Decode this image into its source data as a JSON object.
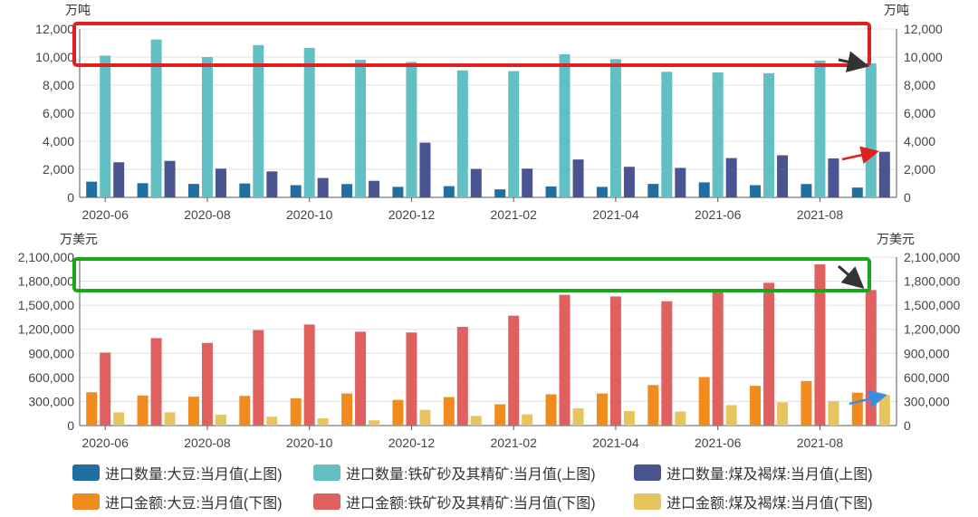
{
  "chart_data": [
    {
      "type": "bar",
      "unit_left": "万吨",
      "unit_right": "万吨",
      "x_tick_labels": [
        "2020-06",
        "2020-08",
        "2020-10",
        "2020-12",
        "2021-02",
        "2021-04",
        "2021-06",
        "2021-08"
      ],
      "categories": [
        "2020-06",
        "2020-07",
        "2020-08",
        "2020-09",
        "2020-10",
        "2020-11",
        "2020-12",
        "2021-01",
        "2021-02",
        "2021-03",
        "2021-04",
        "2021-05",
        "2021-06",
        "2021-07",
        "2021-08",
        "2021-09"
      ],
      "y_tick_labels": [
        "0",
        "2,000",
        "4,000",
        "6,000",
        "8,000",
        "10,000",
        "12,000"
      ],
      "ylim": [
        0,
        12000
      ],
      "grid": true,
      "series": [
        {
          "name": "进口数量:大豆:当月值(上图)",
          "color": "#1f6fa0",
          "values": [
            1120,
            1010,
            960,
            990,
            870,
            950,
            750,
            800,
            570,
            780,
            750,
            960,
            1070,
            870,
            950,
            700
          ]
        },
        {
          "name": "进口数量:铁矿砂及其精矿:当月值(上图)",
          "color": "#62c0c4",
          "values": [
            10100,
            11250,
            10000,
            10850,
            10650,
            9800,
            9650,
            9050,
            9000,
            10200,
            9850,
            8950,
            8900,
            8850,
            9750,
            9550
          ]
        },
        {
          "name": "进口数量:煤及褐煤:当月值(上图)",
          "color": "#4a5490",
          "values": [
            2500,
            2600,
            2050,
            1850,
            1380,
            1180,
            3900,
            2030,
            2050,
            2700,
            2180,
            2100,
            2800,
            3000,
            2780,
            3250
          ]
        }
      ]
    },
    {
      "type": "bar",
      "unit_left": "万美元",
      "unit_right": "万美元",
      "x_tick_labels": [
        "2020-06",
        "2020-08",
        "2020-10",
        "2020-12",
        "2021-02",
        "2021-04",
        "2021-06",
        "2021-08"
      ],
      "categories": [
        "2020-06",
        "2020-07",
        "2020-08",
        "2020-09",
        "2020-10",
        "2020-11",
        "2020-12",
        "2021-01",
        "2021-02",
        "2021-03",
        "2021-04",
        "2021-05",
        "2021-06",
        "2021-07",
        "2021-08",
        "2021-09"
      ],
      "y_tick_labels": [
        "0",
        "300,000",
        "600,000",
        "900,000",
        "1,200,000",
        "1,500,000",
        "1,800,000",
        "2,100,000"
      ],
      "ylim": [
        0,
        2100000
      ],
      "grid": true,
      "series": [
        {
          "name": "进口金额:大豆:当月值(下图)",
          "color": "#f28b1e",
          "values": [
            415000,
            375000,
            360000,
            370000,
            340000,
            400000,
            320000,
            355000,
            265000,
            390000,
            400000,
            505000,
            605000,
            495000,
            555000,
            410000
          ]
        },
        {
          "name": "进口金额:铁矿砂及其精矿:当月值(下图)",
          "color": "#e06060",
          "values": [
            910000,
            1090000,
            1030000,
            1190000,
            1260000,
            1170000,
            1160000,
            1230000,
            1370000,
            1630000,
            1610000,
            1550000,
            1670000,
            1780000,
            2010000,
            1690000
          ]
        },
        {
          "name": "进口金额:煤及褐煤:当月值(下图)",
          "color": "#e6c55f",
          "values": [
            165000,
            165000,
            135000,
            110000,
            90000,
            65000,
            195000,
            120000,
            140000,
            215000,
            180000,
            175000,
            255000,
            290000,
            305000,
            380000
          ]
        }
      ]
    }
  ],
  "annotations": {
    "top_box_color": "#e02020",
    "bottom_box_color": "#1aa61a",
    "arrow_dark_color": "#333333",
    "arrow_red_color": "#e02020",
    "arrow_blue_color": "#3a8ee0"
  },
  "legend": {
    "rows": [
      [
        {
          "label": "进口数量:大豆:当月值(上图)",
          "color": "#1f6fa0"
        },
        {
          "label": "进口数量:铁矿砂及其精矿:当月值(上图)",
          "color": "#62c0c4"
        },
        {
          "label": "进口数量:煤及褐煤:当月值(上图)",
          "color": "#4a5490"
        }
      ],
      [
        {
          "label": "进口金额:大豆:当月值(下图)",
          "color": "#f28b1e"
        },
        {
          "label": "进口金额:铁矿砂及其精矿:当月值(下图)",
          "color": "#e06060"
        },
        {
          "label": "进口金额:煤及褐煤:当月值(下图)",
          "color": "#e6c55f"
        }
      ]
    ]
  }
}
